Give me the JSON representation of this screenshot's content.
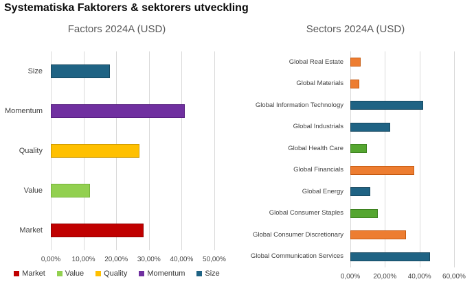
{
  "page_title": "Systematiska Faktorers & sektorers utveckling",
  "styles": {
    "grid_color": "#D9D9D9",
    "axis_text_color": "#444444",
    "chart_title_color": "#595959"
  },
  "chart_data": [
    {
      "type": "bar",
      "orientation": "horizontal",
      "title": "Factors 2024A (USD)",
      "categories": [
        "Size",
        "Momentum",
        "Quality",
        "Value",
        "Market"
      ],
      "values": [
        18,
        41,
        27,
        12,
        28.4
      ],
      "unit": "%",
      "bar_colors": [
        "#1F6384",
        "#7030A0",
        "#FFC000",
        "#92D050",
        "#C00000"
      ],
      "bar_border_colors": [
        "#15465E",
        "#571F80",
        "#CC9900",
        "#76B33A",
        "#900000"
      ],
      "x_ticks": [
        "0,00%",
        "10,00%",
        "20,00%",
        "30,00%",
        "40,00%",
        "50,00%"
      ],
      "xlim": [
        0,
        50
      ],
      "grid": true,
      "legend_position": "bottom",
      "legend": [
        {
          "label": "Market",
          "color": "#C00000"
        },
        {
          "label": "Value",
          "color": "#92D050"
        },
        {
          "label": "Quality",
          "color": "#FFC000"
        },
        {
          "label": "Momentum",
          "color": "#7030A0"
        },
        {
          "label": "Size",
          "color": "#1F6384"
        }
      ]
    },
    {
      "type": "bar",
      "orientation": "horizontal",
      "title": "Sectors 2024A (USD)",
      "categories": [
        "Global Real Estate",
        "Global Materials",
        "Global Information Technology",
        "Global Industrials",
        "Global Health Care",
        "Global Financials",
        "Global Energy",
        "Global Consumer Staples",
        "Global Consumer Discretionary",
        "Global Communication Services"
      ],
      "values": [
        6,
        5,
        42,
        23,
        9.5,
        37,
        11.5,
        16,
        32,
        46
      ],
      "unit": "%",
      "bar_colors": [
        "#ED7D31",
        "#ED7D31",
        "#1F6384",
        "#1F6384",
        "#55A630",
        "#ED7D31",
        "#1F6384",
        "#55A630",
        "#ED7D31",
        "#1F6384"
      ],
      "bar_border_colors": [
        "#C55A11",
        "#C55A11",
        "#15465E",
        "#15465E",
        "#3E8220",
        "#C55A11",
        "#15465E",
        "#3E8220",
        "#C55A11",
        "#15465E"
      ],
      "x_ticks": [
        "0,00%",
        "20,00%",
        "40,00%",
        "60,00%"
      ],
      "xlim": [
        0,
        60
      ],
      "grid": true,
      "legend_position": "none"
    }
  ]
}
